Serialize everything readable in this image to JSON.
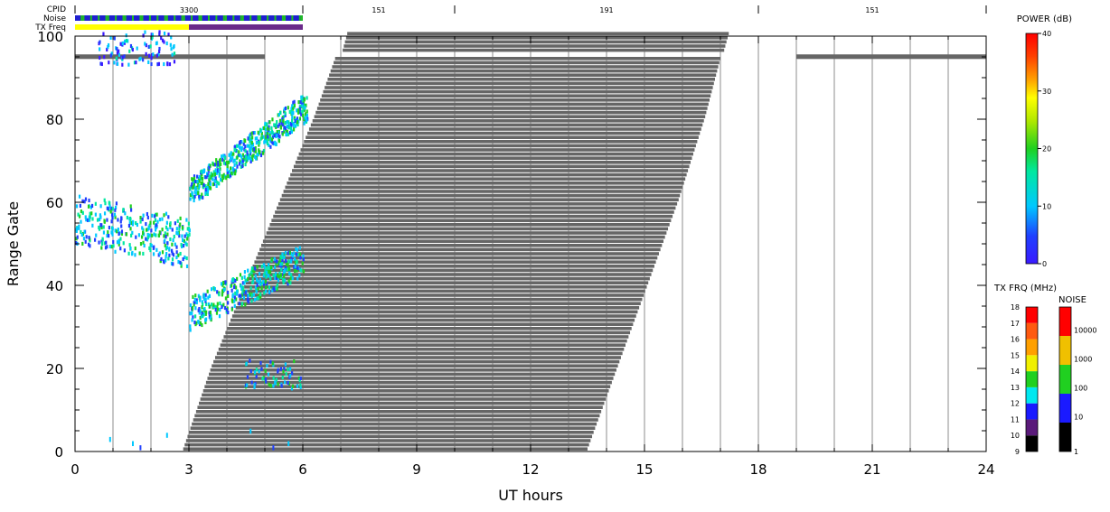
{
  "chart_data": {
    "type": "heatmap",
    "title": "",
    "xlabel": "UT hours",
    "ylabel": "Range Gate",
    "xlim": [
      0,
      24
    ],
    "ylim": [
      0,
      100
    ],
    "x_ticks": [
      "0",
      "3",
      "6",
      "9",
      "12",
      "15",
      "18",
      "21",
      "24"
    ],
    "y_ticks": [
      "0",
      "20",
      "40",
      "60",
      "80",
      "100"
    ],
    "grid": "vertical lines every 1 hour",
    "header_rows": {
      "labels": [
        "CPID",
        "Noise",
        "TX Freq"
      ],
      "cpid_segments": [
        {
          "start": 0,
          "end": 6,
          "label": "3300"
        },
        {
          "start": 6,
          "end": 10,
          "label": "151"
        },
        {
          "start": 10,
          "end": 18,
          "label": "191"
        },
        {
          "start": 18,
          "end": 24,
          "label": "151"
        }
      ],
      "tx_freq_segments": [
        {
          "start": 0,
          "end": 3,
          "color": "#ffff00"
        },
        {
          "start": 3,
          "end": 6,
          "color": "#6a2a8a"
        }
      ],
      "noise_segment": {
        "start": 0,
        "end": 6,
        "color": "#2020d0"
      }
    },
    "gray_scatter_mask": {
      "color": "#666666",
      "lower_region": [
        {
          "gate": 0,
          "x_start": 2.85,
          "x_end": 13.5
        },
        {
          "gate": 20,
          "x_start": 3.6,
          "x_end": 14.3
        },
        {
          "gate": 40,
          "x_start": 4.5,
          "x_end": 15.1
        },
        {
          "gate": 60,
          "x_start": 5.4,
          "x_end": 15.9
        },
        {
          "gate": 80,
          "x_start": 6.3,
          "x_end": 16.6
        },
        {
          "gate": 94,
          "x_start": 6.85,
          "x_end": 17.0
        }
      ],
      "upper_region": [
        {
          "gate": 96,
          "x_start": 7.05,
          "x_end": 17.1
        },
        {
          "gate": 101,
          "x_start": 7.2,
          "x_end": 17.25
        }
      ],
      "top_bars": [
        {
          "gate": 95,
          "x_start": 0.0,
          "x_end": 5.0
        },
        {
          "gate": 95,
          "x_start": 19.0,
          "x_end": 24.0
        }
      ]
    },
    "echo_clusters": [
      {
        "x_start": 0.0,
        "x_end": 3.0,
        "gate_low": 44,
        "gate_high": 62,
        "dominant_power_db": 14
      },
      {
        "x_start": 3.0,
        "x_end": 6.0,
        "gate_low": 29,
        "gate_high": 50,
        "dominant_power_db": 16
      },
      {
        "x_start": 3.0,
        "x_end": 6.1,
        "gate_low": 60,
        "gate_high": 88,
        "dominant_power_db": 15
      },
      {
        "x_start": 4.4,
        "x_end": 6.0,
        "gate_low": 15,
        "gate_high": 22,
        "dominant_power_db": 14
      },
      {
        "x_start": 0.6,
        "x_end": 2.6,
        "gate_low": 93,
        "gate_high": 101,
        "dominant_power_db": 8
      }
    ],
    "power_colorbar": {
      "title": "POWER (dB)",
      "range": [
        0,
        40
      ],
      "ticks": [
        "0",
        "10",
        "20",
        "30",
        "40"
      ]
    },
    "txfrq_colorbar": {
      "title": "TX FRQ (MHz)",
      "ticks": [
        "9",
        "10",
        "11",
        "12",
        "13",
        "14",
        "15",
        "16",
        "17",
        "18"
      ],
      "colors": [
        "#000000",
        "#5a1a7a",
        "#1a1aff",
        "#00e8f0",
        "#20d020",
        "#f0f000",
        "#ffa000",
        "#ff5a10",
        "#ff0000"
      ]
    },
    "noise_colorbar": {
      "title": "NOISE",
      "ticks": [
        "1",
        "10",
        "100",
        "1000",
        "10000"
      ],
      "colors": [
        "#000000",
        "#1a1aff",
        "#20d020",
        "#f0c000",
        "#ff0000"
      ]
    }
  }
}
